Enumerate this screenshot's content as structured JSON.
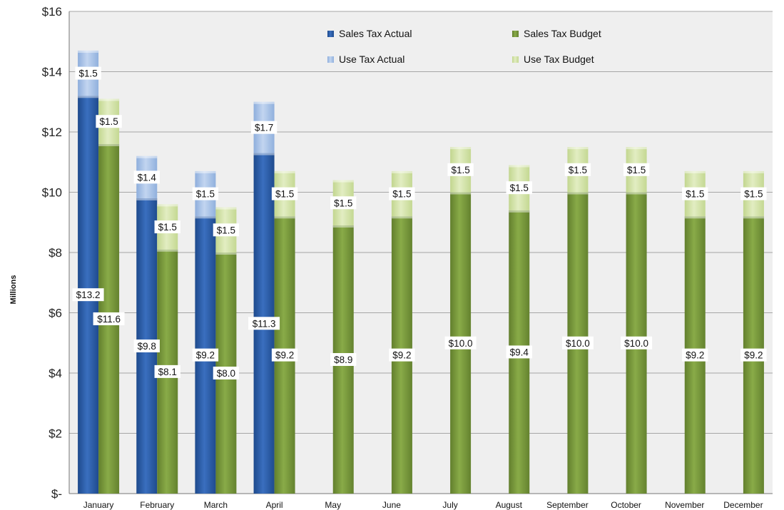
{
  "chart_data": {
    "type": "bar",
    "stacked": true,
    "title": "",
    "xlabel": "",
    "ylabel": "Millions",
    "ylim": [
      0,
      16
    ],
    "y_ticks": [
      "$-",
      "$2",
      "$4",
      "$6",
      "$8",
      "$10",
      "$12",
      "$14",
      "$16"
    ],
    "grid": true,
    "legend_position": "top-center (inside plot)",
    "categories": [
      "January",
      "February",
      "March",
      "April",
      "May",
      "June",
      "July",
      "August",
      "September",
      "October",
      "November",
      "December"
    ],
    "groups": [
      {
        "name": "Actual",
        "series": [
          {
            "name": "Sales Tax Actual",
            "color": "#2d5ea8",
            "values": [
              13.2,
              9.8,
              9.2,
              11.3,
              null,
              null,
              null,
              null,
              null,
              null,
              null,
              null
            ],
            "labels": [
              "$13.2",
              "$9.8",
              "$9.2",
              "$11.3",
              null,
              null,
              null,
              null,
              null,
              null,
              null,
              null
            ]
          },
          {
            "name": "Use Tax Actual",
            "color": "#a9c1e6",
            "values": [
              1.5,
              1.4,
              1.5,
              1.7,
              null,
              null,
              null,
              null,
              null,
              null,
              null,
              null
            ],
            "labels": [
              "$1.5",
              "$1.4",
              "$1.5",
              "$1.7",
              null,
              null,
              null,
              null,
              null,
              null,
              null,
              null
            ]
          }
        ]
      },
      {
        "name": "Budget",
        "series": [
          {
            "name": "Sales Tax Budget",
            "color": "#7a9c3c",
            "values": [
              11.6,
              8.1,
              8.0,
              9.2,
              8.9,
              9.2,
              10.0,
              9.4,
              10.0,
              10.0,
              9.2,
              9.2
            ],
            "labels": [
              "$11.6",
              "$8.1",
              "$8.0",
              "$9.2",
              "$8.9",
              "$9.2",
              "$10.0",
              "$9.4",
              "$10.0",
              "$10.0",
              "$9.2",
              "$9.2"
            ]
          },
          {
            "name": "Use Tax Budget",
            "color": "#d3e4a8",
            "values": [
              1.5,
              1.5,
              1.5,
              1.5,
              1.5,
              1.5,
              1.5,
              1.5,
              1.5,
              1.5,
              1.5,
              1.5
            ],
            "labels": [
              "$1.5",
              "$1.5",
              "$1.5",
              "$1.5",
              "$1.5",
              "$1.5",
              "$1.5",
              "$1.5",
              "$1.5",
              "$1.5",
              "$1.5",
              "$1.5"
            ]
          }
        ]
      }
    ],
    "legend": [
      "Sales Tax Actual",
      "Sales Tax Budget",
      "Use Tax Actual",
      "Use Tax Budget"
    ]
  }
}
